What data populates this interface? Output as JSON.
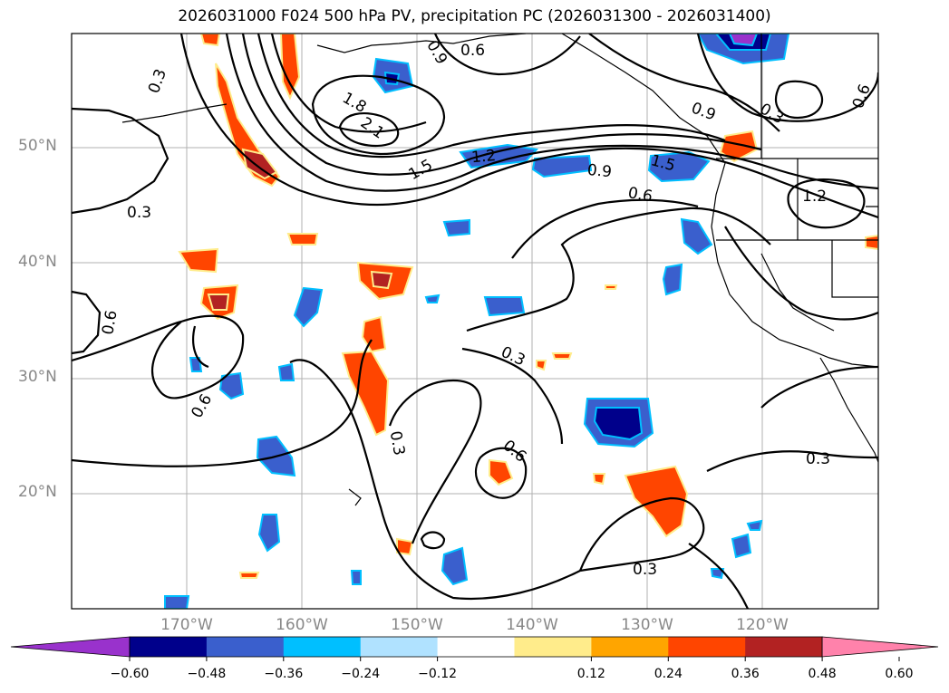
{
  "title": "2026031000 F024 500 hPa PV, precipitation PC (2026031300 - 2026031400)",
  "lat_ticks": [
    "50°N",
    "40°N",
    "30°N",
    "20°N"
  ],
  "lon_ticks": [
    "170°W",
    "160°W",
    "150°W",
    "140°W",
    "130°W",
    "120°W"
  ],
  "contour_labels": [
    "0.3",
    "0.9",
    "0.6",
    "1.8",
    "2.1",
    "1.5",
    "1.2",
    "0.9",
    "0.6",
    "1.5",
    "0.9",
    "0.3",
    "0.6",
    "1.2",
    "0.3",
    "0.6",
    "0.6",
    "0.3",
    "0.3",
    "0.6",
    "0.3",
    "0.3"
  ],
  "colorbar": {
    "colors": [
      "#9932cc",
      "#00008b",
      "#3a5fcd",
      "#00bfff",
      "#b0e2ff",
      "#ffffff",
      "#ffec8b",
      "#ffa500",
      "#ff4500",
      "#b22222",
      "#ff82ab"
    ],
    "tick_labels": [
      "−0.60",
      "−0.48",
      "−0.36",
      "−0.24",
      "−0.12",
      "0.12",
      "0.24",
      "0.36",
      "0.48",
      "0.60"
    ]
  }
}
